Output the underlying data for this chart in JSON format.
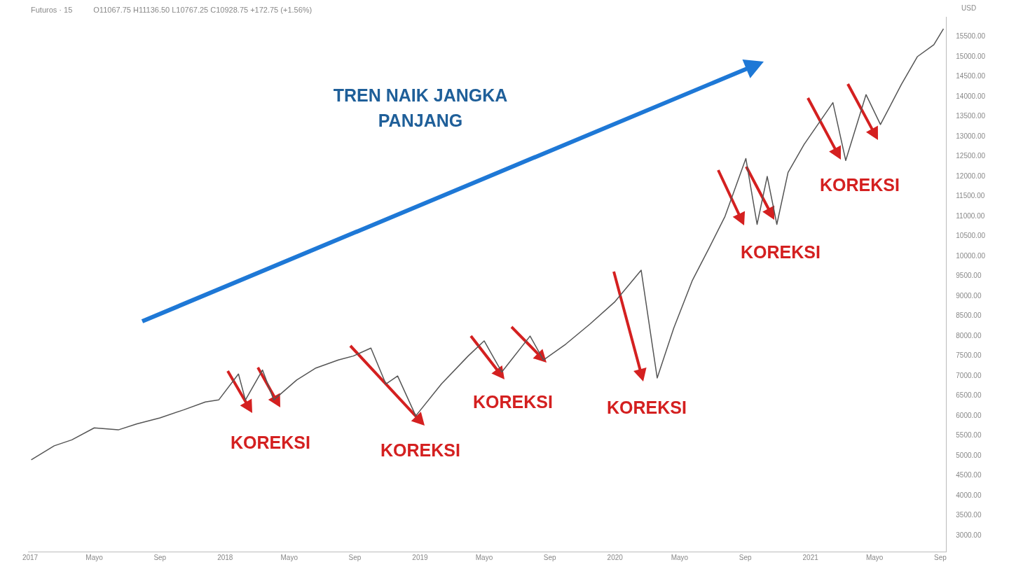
{
  "chart_data": {
    "type": "line",
    "title": "Futuros · 15",
    "subtitle": "O11067.75 H11136.50 L10767.25 C10928.75 +172.75 (+1.56%)",
    "ylabel": "USD",
    "x": [
      "2017-01-03",
      "2017-02-15",
      "2017-03-20",
      "2017-05-01",
      "2017-06-15",
      "2017-07-20",
      "2017-09-01",
      "2017-10-15",
      "2017-11-25",
      "2017-12-20",
      "2018-01-26",
      "2018-02-08",
      "2018-03-12",
      "2018-04-02",
      "2018-05-15",
      "2018-06-20",
      "2018-08-01",
      "2018-08-29",
      "2018-10-01",
      "2018-10-29",
      "2018-11-20",
      "2018-12-24",
      "2019-02-10",
      "2019-04-01",
      "2019-05-01",
      "2019-06-03",
      "2019-07-26",
      "2019-08-20",
      "2019-10-01",
      "2019-11-15",
      "2019-12-31",
      "2020-02-19",
      "2020-03-20",
      "2020-04-20",
      "2020-05-25",
      "2020-06-25",
      "2020-07-25",
      "2020-09-02",
      "2020-09-23",
      "2020-10-12",
      "2020-10-30",
      "2020-11-20",
      "2020-12-20",
      "2021-02-12",
      "2021-03-08",
      "2021-04-15",
      "2021-05-12",
      "2021-06-20",
      "2021-07-20",
      "2021-08-20",
      "2021-09-07"
    ],
    "series": [
      {
        "color": "#555555",
        "values": [
          4900,
          5250,
          5400,
          5700,
          5650,
          5800,
          5950,
          6150,
          6350,
          6400,
          7050,
          6400,
          7150,
          6400,
          6900,
          7200,
          7400,
          7500,
          7700,
          6800,
          7000,
          6000,
          6800,
          7500,
          7880,
          7100,
          8000,
          7400,
          7800,
          8300,
          8850,
          9650,
          6950,
          8200,
          9400,
          10200,
          11000,
          12450,
          10800,
          12000,
          10800,
          12100,
          12800,
          13850,
          12400,
          14050,
          13300,
          14300,
          15000,
          15300,
          15700
        ]
      }
    ],
    "marker": "none",
    "grid": false,
    "legend": false,
    "xlim": [
      "2016-12-28",
      "2021-09-12"
    ],
    "xticks": [
      {
        "value": "2017-01-01",
        "label": "2017"
      },
      {
        "value": "2017-05-01",
        "label": "Mayo"
      },
      {
        "value": "2017-09-01",
        "label": "Sep"
      },
      {
        "value": "2018-01-01",
        "label": "2018"
      },
      {
        "value": "2018-05-01",
        "label": "Mayo"
      },
      {
        "value": "2018-09-01",
        "label": "Sep"
      },
      {
        "value": "2019-01-01",
        "label": "2019"
      },
      {
        "value": "2019-05-01",
        "label": "Mayo"
      },
      {
        "value": "2019-09-01",
        "label": "Sep"
      },
      {
        "value": "2020-01-01",
        "label": "2020"
      },
      {
        "value": "2020-05-01",
        "label": "Mayo"
      },
      {
        "value": "2020-09-01",
        "label": "Sep"
      },
      {
        "value": "2021-01-01",
        "label": "2021"
      },
      {
        "value": "2021-05-01",
        "label": "Mayo"
      },
      {
        "value": "2021-09-01",
        "label": "Sep"
      }
    ],
    "ylim": [
      2600,
      16000
    ],
    "yticks": [
      {
        "value": 3000,
        "label": "3000.00"
      },
      {
        "value": 3500,
        "label": "3500.00"
      },
      {
        "value": 4000,
        "label": "4000.00"
      },
      {
        "value": 4500,
        "label": "4500.00"
      },
      {
        "value": 5000,
        "label": "5000.00"
      },
      {
        "value": 5500,
        "label": "5500.00"
      },
      {
        "value": 6000,
        "label": "6000.00"
      },
      {
        "value": 6500,
        "label": "6500.00"
      },
      {
        "value": 7000,
        "label": "7000.00"
      },
      {
        "value": 7500,
        "label": "7500.00"
      },
      {
        "value": 8000,
        "label": "8000.00"
      },
      {
        "value": 8500,
        "label": "8500.00"
      },
      {
        "value": 9000,
        "label": "9000.00"
      },
      {
        "value": 9500,
        "label": "9500.00"
      },
      {
        "value": 10000,
        "label": "10000.00"
      },
      {
        "value": 10500,
        "label": "10500.00"
      },
      {
        "value": 11000,
        "label": "11000.00"
      },
      {
        "value": 11500,
        "label": "11500.00"
      },
      {
        "value": 12000,
        "label": "12000.00"
      },
      {
        "value": 12500,
        "label": "12500.00"
      },
      {
        "value": 13000,
        "label": "13000.00"
      },
      {
        "value": 13500,
        "label": "13500.00"
      },
      {
        "value": 14000,
        "label": "14000.00"
      },
      {
        "value": 14500,
        "label": "14500.00"
      },
      {
        "value": 15000,
        "label": "15000.00"
      },
      {
        "value": 15500,
        "label": "15500.00"
      }
    ],
    "annotations": [
      "TREN NAIK JANGKA PANJANG",
      "KOREKSI",
      "KOREKSI",
      "KOREKSI",
      "KOREKSI",
      "KOREKSI",
      "KOREKSI"
    ]
  }
}
